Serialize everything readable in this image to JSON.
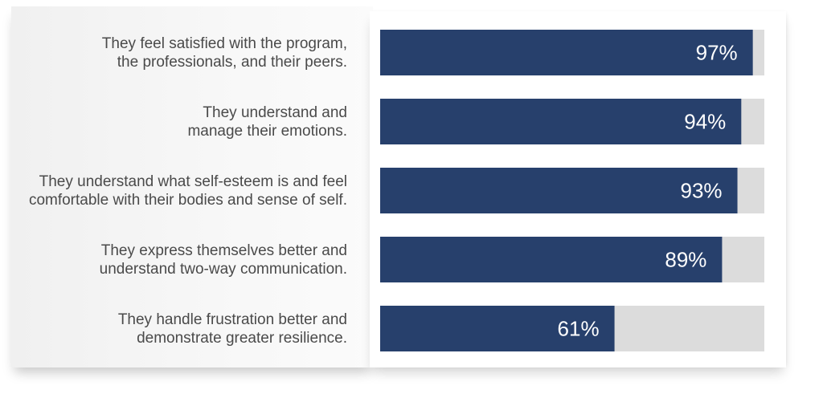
{
  "chart_data": {
    "type": "bar",
    "orientation": "horizontal",
    "categories": [
      [
        "They feel satisfied with the program,",
        "the professionals, and their peers."
      ],
      [
        "They understand and",
        "manage their emotions."
      ],
      [
        "They understand what self-esteem is and feel",
        "comfortable with their bodies and sense of self."
      ],
      [
        "They express themselves better and",
        "understand two-way communication."
      ],
      [
        "They handle frustration better and",
        "demonstrate greater resilience."
      ]
    ],
    "values": [
      97,
      94,
      93,
      89,
      61
    ],
    "value_labels": [
      "97%",
      "94%",
      "93%",
      "89%",
      "61%"
    ],
    "xlim": [
      0,
      100
    ],
    "title": "",
    "xlabel": "",
    "ylabel": "",
    "grid": false,
    "legend": "none",
    "colors": {
      "bar": "#27406c",
      "track": "#dcdcdc",
      "value_text": "#ffffff",
      "label_text": "#4a4a4a"
    }
  }
}
